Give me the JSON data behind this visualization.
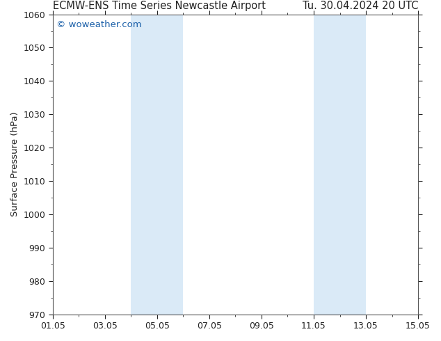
{
  "title_left": "ECMW-ENS Time Series Newcastle Airport",
  "title_right": "Tu. 30.04.2024 20 UTC",
  "ylabel": "Surface Pressure (hPa)",
  "ylim": [
    970,
    1060
  ],
  "yticks": [
    970,
    980,
    990,
    1000,
    1010,
    1020,
    1030,
    1040,
    1050,
    1060
  ],
  "xlim_start": 0,
  "xlim_end": 14,
  "xtick_labels": [
    "01.05",
    "03.05",
    "05.05",
    "07.05",
    "09.05",
    "11.05",
    "13.05",
    "15.05"
  ],
  "xtick_positions": [
    0,
    2,
    4,
    6,
    8,
    10,
    12,
    14
  ],
  "shaded_bands": [
    {
      "x_start": 3.0,
      "x_end": 5.0
    },
    {
      "x_start": 10.0,
      "x_end": 12.0
    }
  ],
  "shade_color": "#daeaf7",
  "watermark": "© woweather.com",
  "watermark_color": "#1a5fa8",
  "background_color": "#ffffff",
  "title_color": "#222222",
  "tick_color": "#222222",
  "border_color": "#555555",
  "minor_tick_interval": 1,
  "title_fontsize": 10.5,
  "ylabel_fontsize": 9.5,
  "tick_label_fontsize": 9
}
